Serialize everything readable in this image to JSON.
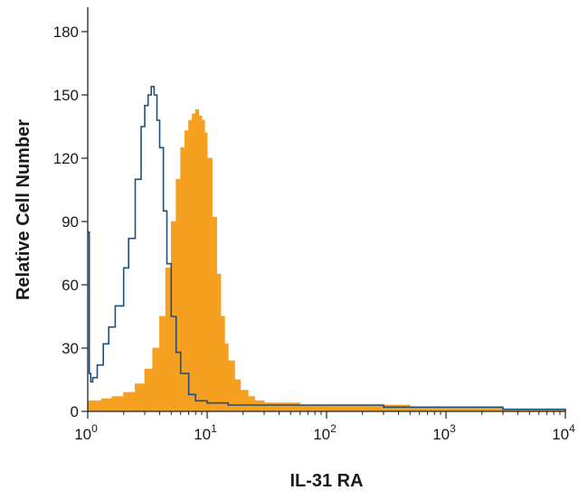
{
  "chart_data": {
    "type": "area",
    "title": "",
    "xlabel": "IL-31 RA",
    "ylabel": "Relative Cell Number",
    "x_scale": "log",
    "xlim": [
      1,
      10000
    ],
    "ylim": [
      0,
      180
    ],
    "x_ticks": [
      {
        "value": 1,
        "base": "10",
        "exp": "0"
      },
      {
        "value": 10,
        "base": "10",
        "exp": "1"
      },
      {
        "value": 100,
        "base": "10",
        "exp": "2"
      },
      {
        "value": 1000,
        "base": "10",
        "exp": "3"
      },
      {
        "value": 10000,
        "base": "10",
        "exp": "4"
      }
    ],
    "y_ticks": [
      0,
      30,
      60,
      90,
      120,
      150,
      180
    ],
    "grid": false,
    "legend": "none",
    "series": [
      {
        "style": "filled",
        "color": "#f5a020",
        "x": [
          1.0,
          1.3,
          1.6,
          2.0,
          2.5,
          3.0,
          3.5,
          4.0,
          4.5,
          5.0,
          5.5,
          6.0,
          6.5,
          7.0,
          7.5,
          8.0,
          8.5,
          9.0,
          9.5,
          10.0,
          11.0,
          12.0,
          13.0,
          14.0,
          15.0,
          17.0,
          19.0,
          22.0,
          25.0,
          30.0,
          40.0,
          60.0,
          100.0,
          200.0,
          500.0,
          1000.0,
          3000.0,
          10000.0
        ],
        "y": [
          5,
          6,
          7,
          9,
          13,
          20,
          30,
          45,
          68,
          90,
          110,
          125,
          133,
          138,
          141,
          143,
          140,
          138,
          132,
          120,
          92,
          65,
          45,
          32,
          24,
          15,
          10,
          7,
          5,
          4,
          4,
          3,
          3,
          3,
          2,
          2,
          1,
          0
        ]
      },
      {
        "style": "outline",
        "color": "#1f4e79",
        "x": [
          1.0,
          1.03,
          1.06,
          1.1,
          1.2,
          1.35,
          1.5,
          1.7,
          2.0,
          2.2,
          2.5,
          2.8,
          3.0,
          3.2,
          3.4,
          3.6,
          3.8,
          4.0,
          4.3,
          4.6,
          5.0,
          5.5,
          6.0,
          7.0,
          8.0,
          10.0,
          15.0,
          20.0,
          40.0,
          100.0,
          300.0,
          1000.0,
          3000.0,
          10000.0
        ],
        "y": [
          85,
          18,
          14,
          16,
          22,
          32,
          40,
          50,
          68,
          82,
          110,
          135,
          145,
          150,
          154,
          150,
          138,
          125,
          95,
          70,
          45,
          28,
          18,
          8,
          5,
          4,
          3,
          3,
          3,
          3,
          2,
          2,
          1,
          0
        ]
      }
    ]
  }
}
